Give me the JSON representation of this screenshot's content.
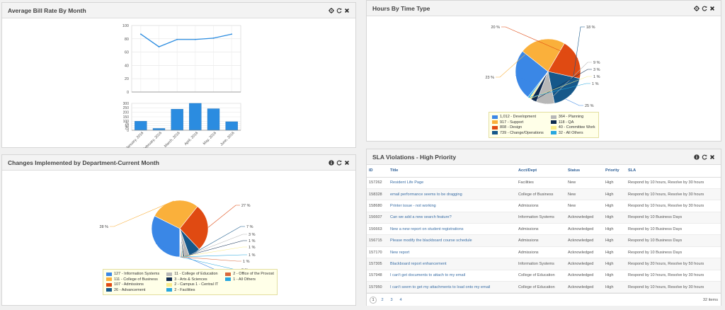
{
  "colors": {
    "accent_blue": "#2b8ce0",
    "line_blue": "#2b8ce0",
    "link": "#3a6ea5",
    "pie": [
      "#3a87e6",
      "#fab03b",
      "#e04a12",
      "#16588a",
      "#b7b7b7",
      "#0e2a4f",
      "#f9ec8a",
      "#27a7df",
      "#d9693c"
    ]
  },
  "bill_rate": {
    "title": "Average Bill Rate By Month",
    "tools": [
      "gear-icon",
      "refresh-icon",
      "close-icon"
    ],
    "chart_data": [
      {
        "type": "line",
        "categories": [
          "January, 2016",
          "February, 2016",
          "March, 2016",
          "April, 2016",
          "May, 2016",
          "June, 2016"
        ],
        "values": [
          87,
          68,
          79,
          79,
          81,
          87
        ],
        "ylim": [
          0,
          100
        ],
        "yticks": [
          0,
          20,
          40,
          60,
          80,
          100
        ],
        "grid": true,
        "title": "",
        "xlabel": "",
        "ylabel": ""
      },
      {
        "type": "bar",
        "categories": [
          "January, 2016",
          "February, 2016",
          "March, 2016",
          "April, 2016",
          "May, 2016",
          "June, 2016"
        ],
        "values": [
          100,
          20,
          235,
          300,
          240,
          95
        ],
        "ylim": [
          0,
          300
        ],
        "yticks": [
          0,
          25,
          50,
          75,
          100,
          150,
          200,
          250,
          300
        ],
        "grid": true,
        "title": "",
        "xlabel": "",
        "ylabel": ""
      }
    ]
  },
  "hours": {
    "title": "Hours By Time Type",
    "tools": [
      "gear-icon",
      "refresh-icon",
      "close-icon"
    ],
    "chart_data": {
      "type": "pie",
      "labels": [
        "Development",
        "Support",
        "Design",
        "Change/Operations",
        "Planning",
        "QA",
        "Committee Work",
        "All Others"
      ],
      "values": [
        1012,
        917,
        808,
        739,
        364,
        118,
        40,
        32
      ],
      "percent_labels": [
        "25 %",
        "23 %",
        "20 %",
        "18 %",
        "9 %",
        "3 %",
        "1 %",
        "1 %"
      ],
      "legend_text": [
        "1,012 - Development",
        "917 - Support",
        "808 - Design",
        "739 - Change/Operations",
        "364 - Planning",
        "118 - QA",
        "40 - Committee Work",
        "32 - All Others"
      ],
      "legend": "bottom"
    }
  },
  "changes": {
    "title": "Changes Implemented by Department-Current Month",
    "tools": [
      "info-icon",
      "refresh-icon",
      "close-icon"
    ],
    "chart_data": {
      "type": "pie",
      "labels": [
        "Information Systems",
        "College of Business",
        "Admissions",
        "Advancement",
        "College of Education",
        "Arts & Sciences",
        "Campus 1 - Central IT",
        "Facilities",
        "Office of the Provost",
        "All Others"
      ],
      "values": [
        127,
        111,
        107,
        26,
        11,
        3,
        2,
        2,
        2,
        1
      ],
      "percent_labels": [
        "32 %",
        "28 %",
        "27 %",
        "7 %",
        "3 %",
        "1 %",
        "1 %",
        "1 %",
        "1 %",
        "0 %"
      ],
      "legend_text": [
        "127 - Information Systems",
        "111 - College of Business",
        "107 - Admissions",
        "26 - Advancement",
        "11 - College of Education",
        "3 - Arts & Sciences",
        "2 - Campus 1 - Central IT",
        "2 - Facilities",
        "2 - Office of the Provost",
        "1 - All Others"
      ],
      "legend": "bottom"
    }
  },
  "sla": {
    "title": "SLA Violations - High Priority",
    "tools": [
      "info-icon",
      "refresh-icon",
      "close-icon"
    ],
    "columns": [
      "ID",
      "Title",
      "Acct/Dept",
      "Status",
      "Priority",
      "SLA"
    ],
    "rows": [
      [
        "157262",
        "Resident Life Page",
        "Facilities",
        "New",
        "High",
        "Respond by 10 hours, Resolve by 30 hours"
      ],
      [
        "158328",
        "email performance seems to be dragging",
        "College of Business",
        "New",
        "High",
        "Respond by 10 hours, Resolve by 30 hours"
      ],
      [
        "158680",
        "Printer issue - not working",
        "Admissions",
        "New",
        "High",
        "Respond by 10 hours, Resolve by 30 hours"
      ],
      [
        "156607",
        "Can we add a new search feature?",
        "Information Systems",
        "Acknowledged",
        "High",
        "Respond by 10 Business Days"
      ],
      [
        "156663",
        "New a new report on student registrations",
        "Admissions",
        "Acknowledged",
        "High",
        "Respond by 10 Business Days"
      ],
      [
        "156715",
        "Please modify the blackboard course schedule",
        "Admissions",
        "Acknowledged",
        "High",
        "Respond by 10 Business Days"
      ],
      [
        "157170",
        "New report",
        "Admissions",
        "Acknowledged",
        "High",
        "Respond by 10 Business Days"
      ],
      [
        "157305",
        "Blackboard report enhancement",
        "Information Systems",
        "Acknowledged",
        "High",
        "Respond by 20 hours, Resolve by 50 hours"
      ],
      [
        "157948",
        "I can't get documents to attach to my email",
        "College of Education",
        "Acknowledged",
        "High",
        "Respond by 10 hours, Resolve by 30 hours"
      ],
      [
        "157950",
        "I can't seem to get my attachments to load onto my email",
        "College of Education",
        "Acknowledged",
        "High",
        "Respond by 10 hours, Resolve by 30 hours"
      ]
    ],
    "pager": {
      "pages": [
        "1",
        "2",
        "3",
        "4"
      ],
      "current": "1",
      "count": "32 items"
    }
  }
}
